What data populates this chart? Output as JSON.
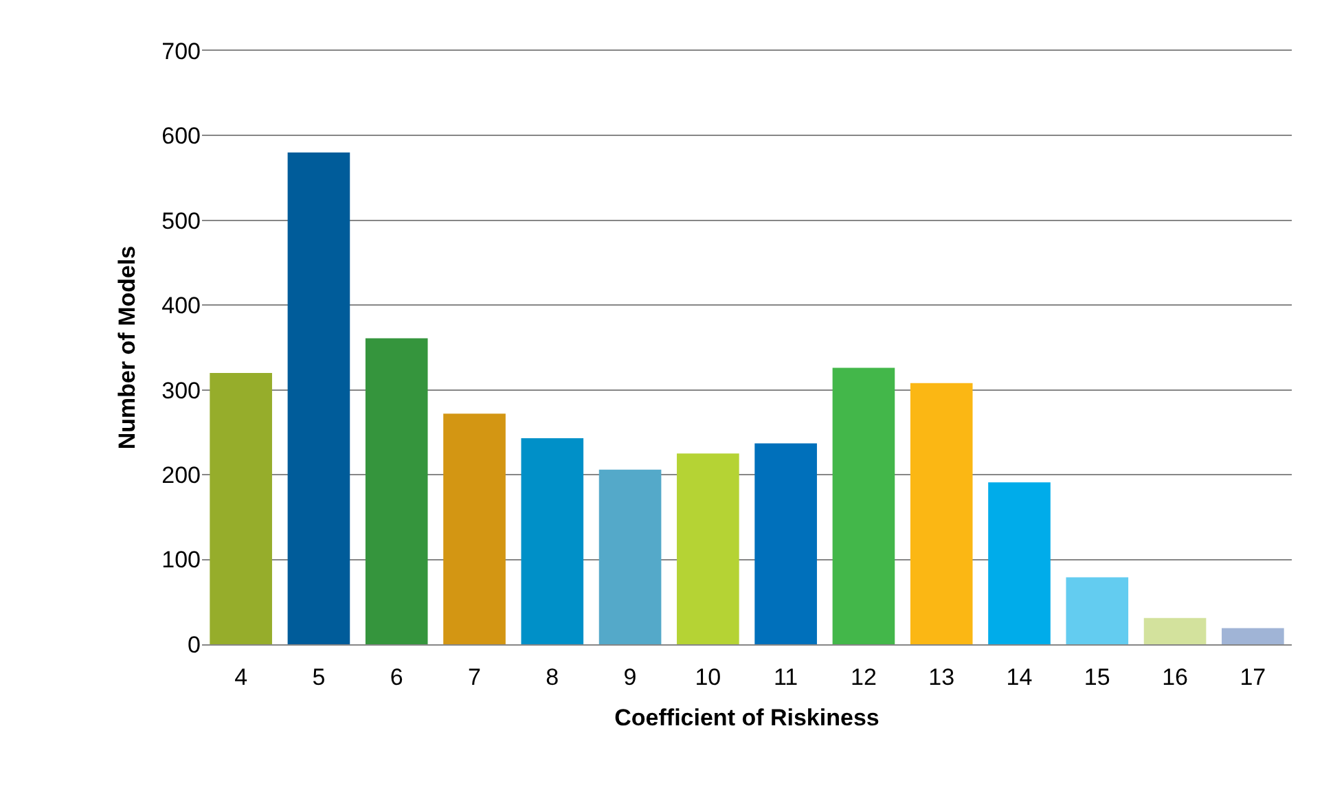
{
  "chart_data": {
    "type": "bar",
    "xlabel": "Coefficient of Riskiness",
    "ylabel": "Number of Models",
    "categories": [
      "4",
      "5",
      "6",
      "7",
      "8",
      "9",
      "10",
      "11",
      "12",
      "13",
      "14",
      "15",
      "16",
      "17"
    ],
    "values": [
      320,
      580,
      361,
      272,
      243,
      206,
      225,
      237,
      326,
      308,
      191,
      79,
      31,
      19
    ],
    "colors": [
      "#96ad2b",
      "#005c9a",
      "#35953d",
      "#d39613",
      "#0090c8",
      "#54a9c9",
      "#b5d334",
      "#0070bb",
      "#43b74a",
      "#fbb714",
      "#00acea",
      "#63ccf0",
      "#d3e29d",
      "#a0b4d6"
    ],
    "ylim": [
      0,
      700
    ],
    "yticks": [
      0,
      100,
      200,
      300,
      400,
      500,
      600,
      700
    ],
    "grid": "y"
  }
}
